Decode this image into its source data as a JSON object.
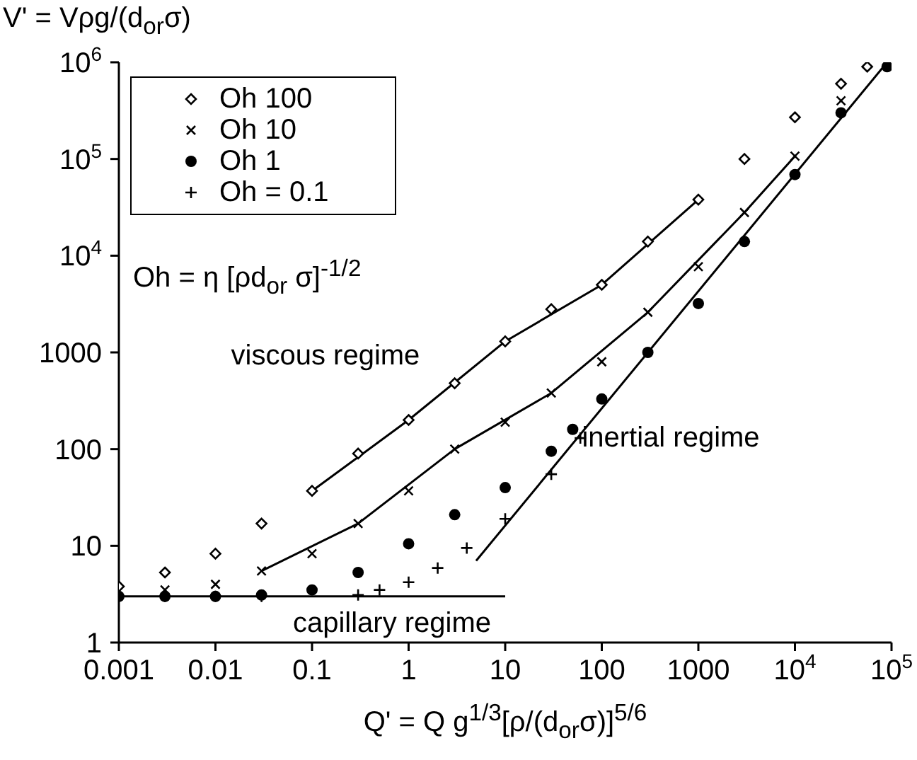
{
  "chart_data": {
    "type": "scatter",
    "xlabel": "Q' = Q g$^{1/3}$[ρ/(d$_{or}$σ)]$^{5/6}$",
    "ylabel": "V' = Vρg/(d$_{or}$σ)",
    "log": "xy",
    "legend": "top left",
    "xlim": [
      0.001,
      100000
    ],
    "xticks": [
      0.001,
      0.01,
      0.1,
      1,
      10,
      100,
      1000,
      {
        "value": 10000,
        "label": "10$^{4}$"
      },
      {
        "value": 100000,
        "label": "10$^{5}$"
      }
    ],
    "ylim": [
      1,
      1000000
    ],
    "yticks": [
      1,
      10,
      100,
      1000,
      {
        "value": 10000,
        "label": "10$^{4}$"
      },
      {
        "value": 100000,
        "label": "10$^{5}$"
      },
      {
        "value": 1000000,
        "label": "10$^{6}$"
      }
    ],
    "annotations": [
      "Oh = η [ρd$_{or}$ σ]$^{-1/2}$",
      "viscous regime",
      "inertial regime",
      "capillary regime"
    ],
    "series": [
      {
        "name": "Oh 100",
        "color": "#000000",
        "marker": "diamond",
        "x": [
          0.001,
          0.003,
          0.01,
          0.03,
          0.1,
          0.3,
          1,
          3,
          10,
          30,
          100,
          300,
          1000,
          3000,
          10000,
          30000,
          56000
        ],
        "values": [
          3.8,
          5.3,
          8.3,
          17,
          37,
          90,
          200,
          480,
          1300,
          2800,
          5000,
          14000,
          38000,
          100000,
          270000,
          600000,
          900000
        ]
      },
      {
        "name": "Oh 10",
        "color": "#000000",
        "marker": "cross",
        "x": [
          0.003,
          0.01,
          0.03,
          0.1,
          0.3,
          1,
          3,
          10,
          30,
          100,
          300,
          1000,
          3000,
          10000,
          30000
        ],
        "values": [
          3.5,
          4.0,
          5.5,
          8.3,
          17,
          37,
          100,
          190,
          380,
          800,
          2600,
          7700,
          28000,
          107000,
          400000
        ]
      },
      {
        "name": "Oh 1",
        "color": "#000000",
        "marker": "circle",
        "x": [
          0.001,
          0.003,
          0.01,
          0.03,
          0.1,
          0.3,
          1,
          3,
          10,
          30,
          50,
          100,
          300,
          1000,
          3000,
          10000,
          30000,
          90000
        ],
        "values": [
          3.0,
          3.0,
          3.0,
          3.1,
          3.5,
          5.3,
          10.5,
          21,
          40,
          95,
          160,
          330,
          1000,
          3200,
          14000,
          69000,
          300000,
          900000
        ]
      },
      {
        "name": "Oh = 0.1",
        "color": "#000000",
        "marker": "plus",
        "x": [
          0.001,
          0.003,
          0.01,
          0.03,
          0.3,
          0.5,
          1,
          2,
          4,
          10,
          30,
          60
        ],
        "values": [
          3.0,
          3.0,
          3.0,
          3.0,
          3.1,
          3.5,
          4.2,
          5.9,
          9.5,
          19,
          55,
          130
        ]
      },
      {
        "type": "line",
        "color": "#000000",
        "marker": "none",
        "line_style": "solid",
        "x": [
          0.1,
          1,
          10,
          100,
          1000
        ],
        "values": [
          37,
          200,
          1300,
          5000,
          38000
        ]
      },
      {
        "type": "line",
        "color": "#000000",
        "marker": "none",
        "line_style": "solid",
        "x": [
          0.03,
          0.3,
          3,
          30,
          300,
          3000,
          10000
        ],
        "values": [
          5.5,
          17,
          100,
          380,
          2600,
          28000,
          107000
        ]
      },
      {
        "type": "line",
        "color": "#000000",
        "marker": "none",
        "line_style": "solid",
        "x": [
          5,
          90000
        ],
        "values": [
          7,
          1000000
        ]
      },
      {
        "type": "line",
        "color": "#000000",
        "marker": "none",
        "line_style": "solid",
        "x": [
          0.001,
          10
        ],
        "values": [
          3,
          3
        ]
      }
    ]
  }
}
